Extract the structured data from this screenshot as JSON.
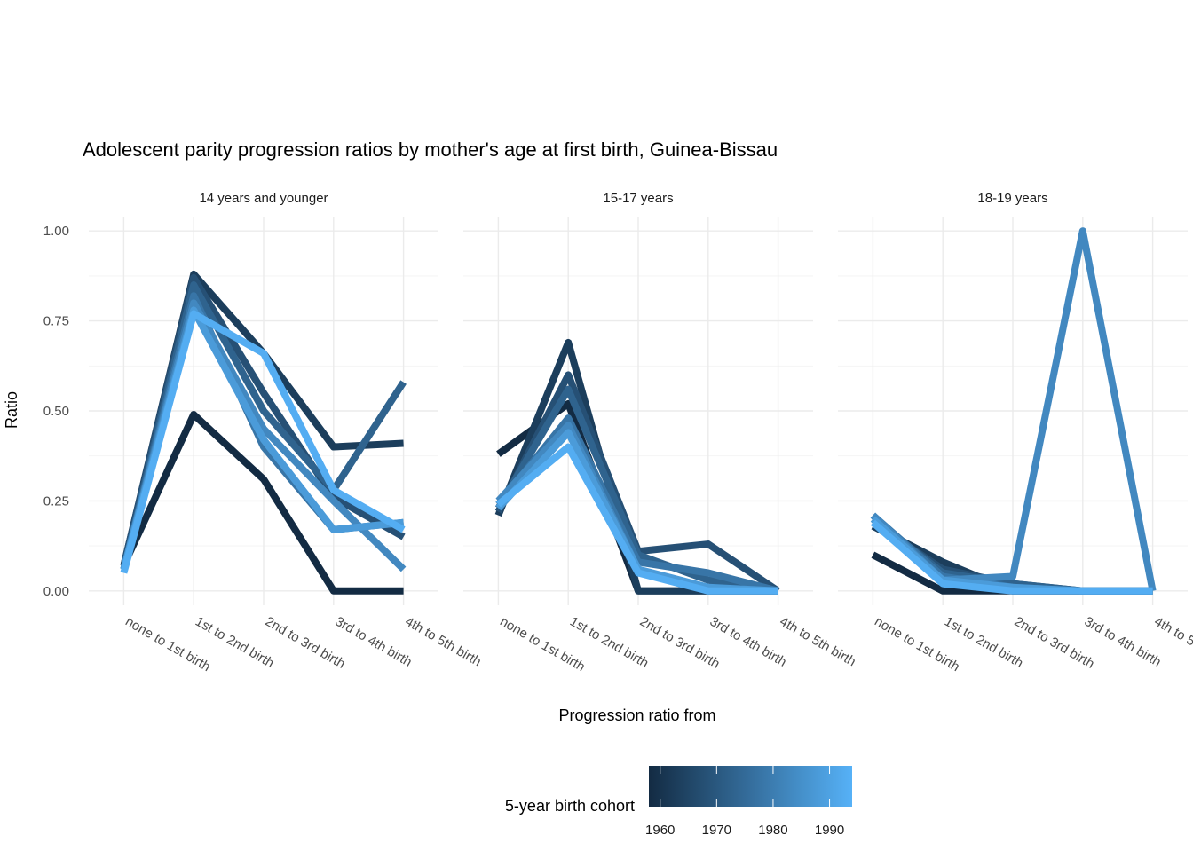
{
  "chart_data": {
    "type": "line",
    "title": "Adolescent parity progression ratios by mother's age at first birth,  Guinea-Bissau",
    "x_label": "Progression ratio from",
    "y_label": "Ratio",
    "categories": [
      "none to 1st birth",
      "1st to 2nd birth",
      "2nd to 3rd birth",
      "3rd to 4th birth",
      "4th to 5th birth"
    ],
    "ylim": [
      -0.04,
      1.04
    ],
    "yticks": [
      {
        "value": 0,
        "label": "0.00"
      },
      {
        "value": 0.25,
        "label": "0.25"
      },
      {
        "value": 0.5,
        "label": "0.50"
      },
      {
        "value": 0.75,
        "label": "0.75"
      },
      {
        "value": 1,
        "label": "1.00"
      }
    ],
    "grid": true,
    "legend": {
      "title": "5-year birth cohort",
      "position": "bottom",
      "lim": [
        1958,
        1994
      ],
      "ticks": [
        1960,
        1970,
        1980,
        1990
      ],
      "color_low": "#132B43",
      "color_high": "#56B1F7"
    },
    "panels": [
      {
        "title": "14 years and younger",
        "series": [
          {
            "cohort": 1958,
            "values": [
              0.07,
              0.49,
              0.31,
              0.0,
              0.0
            ]
          },
          {
            "cohort": 1963,
            "values": [
              0.07,
              0.88,
              0.66,
              0.4,
              0.41
            ]
          },
          {
            "cohort": 1968,
            "values": [
              0.07,
              0.87,
              0.55,
              0.26,
              0.15
            ]
          },
          {
            "cohort": 1973,
            "values": [
              0.06,
              0.85,
              0.5,
              0.28,
              0.58
            ]
          },
          {
            "cohort": 1978,
            "values": [
              0.06,
              0.82,
              0.4,
              0.17,
              0.19
            ]
          },
          {
            "cohort": 1983,
            "values": [
              0.06,
              0.8,
              0.45,
              0.25,
              0.06
            ]
          },
          {
            "cohort": 1988,
            "values": [
              0.06,
              0.78,
              0.42,
              0.17,
              0.19
            ]
          },
          {
            "cohort": 1993,
            "values": [
              0.05,
              0.77,
              0.66,
              0.28,
              0.17
            ]
          }
        ]
      },
      {
        "title": "15-17 years",
        "series": [
          {
            "cohort": 1958,
            "values": [
              0.38,
              0.52,
              0.0,
              0.0,
              0.0
            ]
          },
          {
            "cohort": 1963,
            "values": [
              0.21,
              0.69,
              0.0,
              0.0,
              0.0
            ]
          },
          {
            "cohort": 1968,
            "values": [
              0.22,
              0.6,
              0.11,
              0.13,
              0.0
            ]
          },
          {
            "cohort": 1973,
            "values": [
              0.23,
              0.56,
              0.1,
              0.03,
              0.0
            ]
          },
          {
            "cohort": 1978,
            "values": [
              0.24,
              0.48,
              0.08,
              0.05,
              0.0
            ]
          },
          {
            "cohort": 1983,
            "values": [
              0.25,
              0.46,
              0.06,
              0.0,
              0.0
            ]
          },
          {
            "cohort": 1988,
            "values": [
              0.23,
              0.44,
              0.06,
              0.01,
              0.0
            ]
          },
          {
            "cohort": 1993,
            "values": [
              0.24,
              0.4,
              0.05,
              0.0,
              0.0
            ]
          }
        ]
      },
      {
        "title": "18-19 years",
        "series": [
          {
            "cohort": 1958,
            "values": [
              0.1,
              0.0,
              0.0,
              0.0,
              0.0
            ]
          },
          {
            "cohort": 1963,
            "values": [
              0.18,
              0.08,
              0.0,
              0.0,
              0.0
            ]
          },
          {
            "cohort": 1968,
            "values": [
              0.19,
              0.06,
              0.02,
              0.0,
              0.0
            ]
          },
          {
            "cohort": 1973,
            "values": [
              0.2,
              0.05,
              0.02,
              0.0,
              0.0
            ]
          },
          {
            "cohort": 1978,
            "values": [
              0.21,
              0.04,
              0.01,
              0.0,
              0.0
            ]
          },
          {
            "cohort": 1983,
            "values": [
              0.21,
              0.03,
              0.04,
              1.0,
              0.0
            ]
          },
          {
            "cohort": 1988,
            "values": [
              0.2,
              0.03,
              0.01,
              0.0,
              0.0
            ]
          },
          {
            "cohort": 1993,
            "values": [
              0.19,
              0.02,
              0.0,
              0.0,
              0.0
            ]
          }
        ]
      }
    ]
  }
}
